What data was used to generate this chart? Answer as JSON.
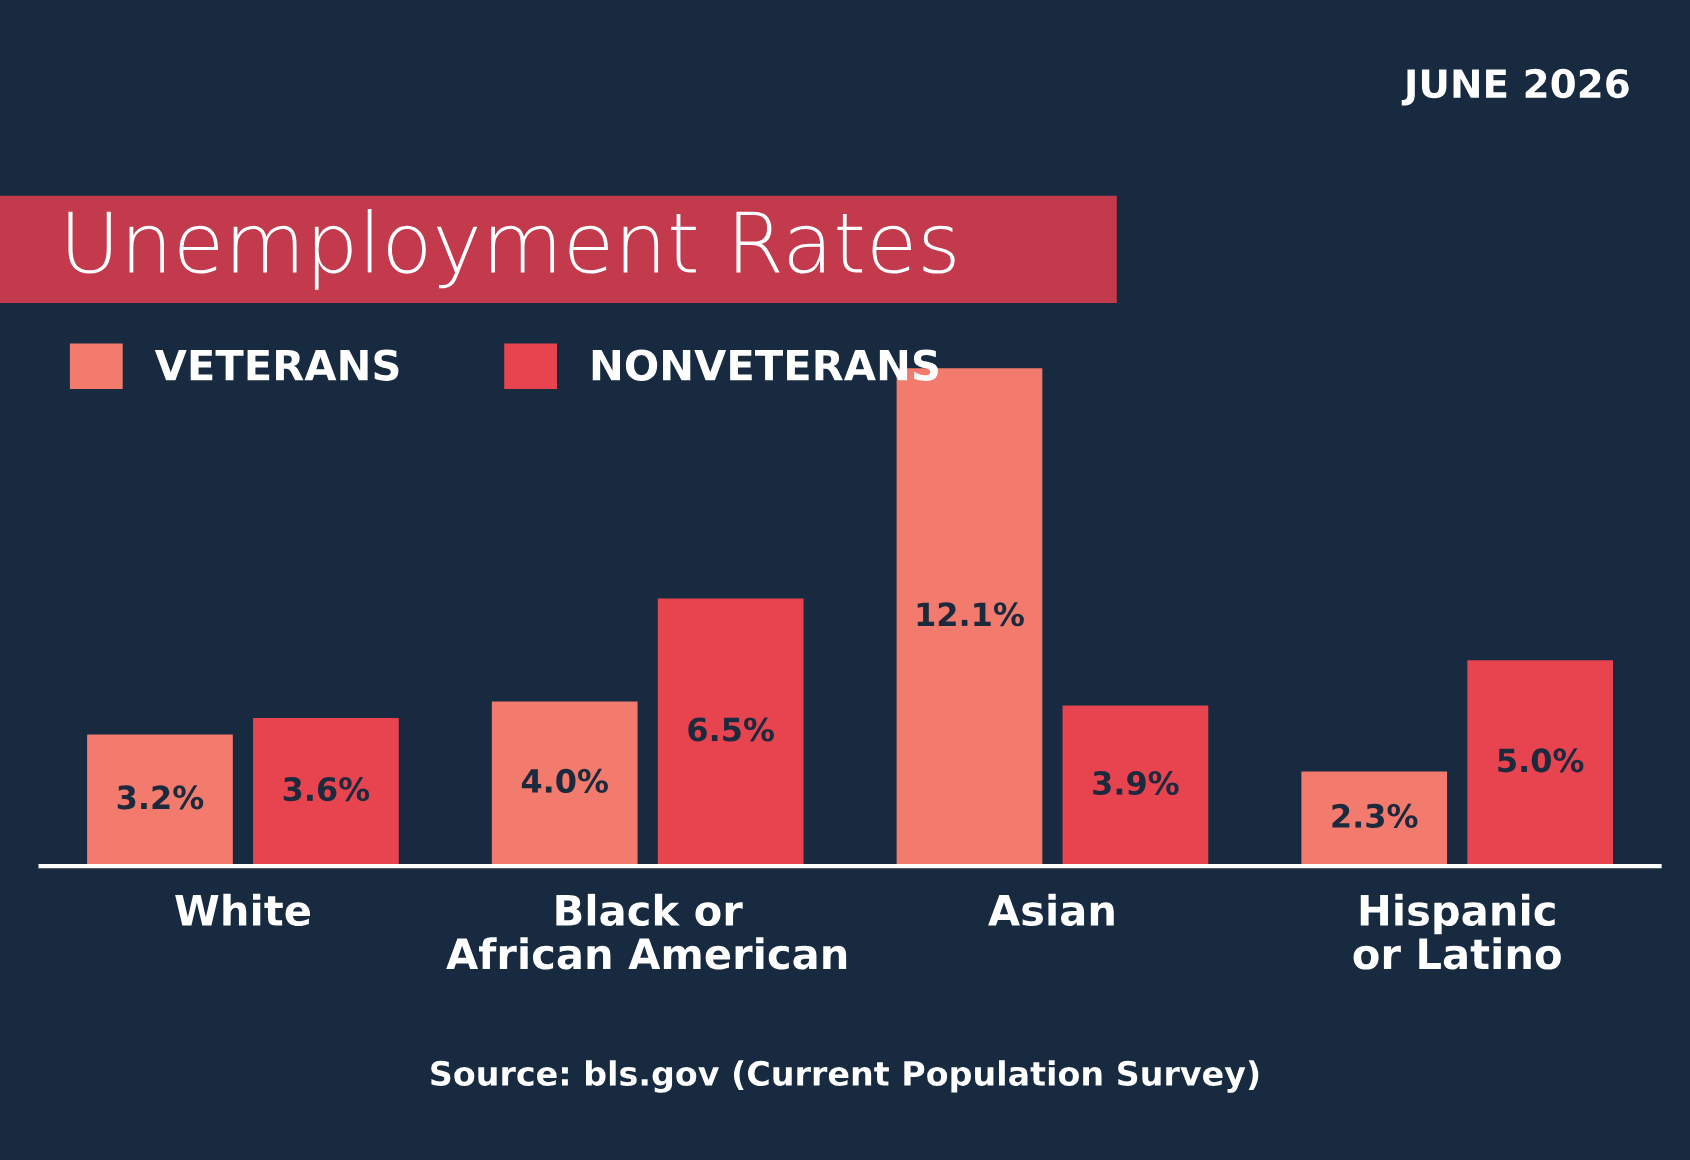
{
  "chart_data": {
    "type": "bar",
    "title": "Unemployment Rates",
    "subtitle": "JUNE 2026",
    "categories": [
      "White",
      "Black or\nAfrican American",
      "Asian",
      "Hispanic\nor Latino"
    ],
    "series": [
      {
        "name": "VETERANS",
        "color": "#f27b6d",
        "values": [
          3.2,
          4.0,
          12.1,
          2.3
        ],
        "value_labels": [
          "3.2%",
          "4.0%",
          "12.1%",
          "2.3%"
        ]
      },
      {
        "name": "NONVETERANS",
        "color": "#e84450",
        "values": [
          3.6,
          6.5,
          3.9,
          5.0
        ],
        "value_labels": [
          "3.6%",
          "6.5%",
          "3.9%",
          "5.0%"
        ]
      }
    ],
    "legend": "top left",
    "grid": false,
    "annotations": [
      "Source: bls.gov (Current Population Survey)"
    ]
  }
}
